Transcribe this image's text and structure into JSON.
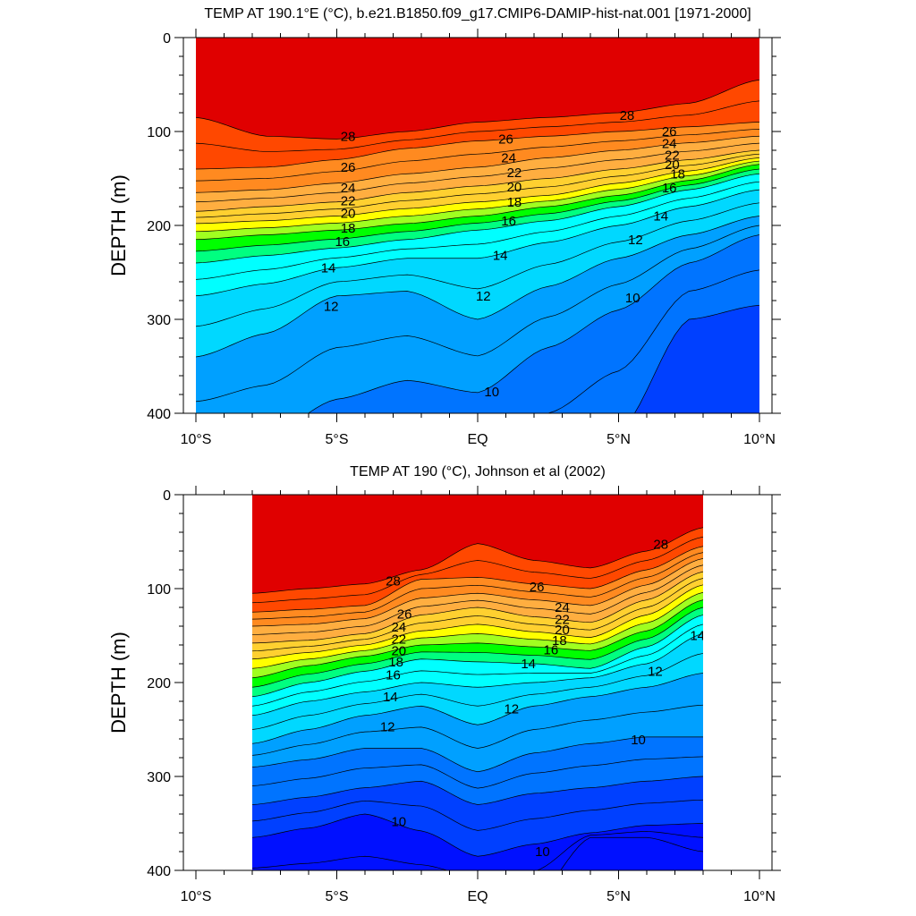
{
  "chart_data": [
    {
      "type": "contour",
      "title": "TEMP AT 190.1°E (°C), b.e21.B1850.f09_g17.CMIP6-DAMIP-hist-nat.001 [1971-2000]",
      "xlabel": "",
      "ylabel": "DEPTH (m)",
      "xlim": [
        -10,
        10
      ],
      "ylim": [
        0,
        400
      ],
      "y_inverted": true,
      "x_ticks": [
        {
          "value": -10,
          "label": "10°S"
        },
        {
          "value": -5,
          "label": "5°S"
        },
        {
          "value": 0,
          "label": "EQ"
        },
        {
          "value": 5,
          "label": "5°N"
        },
        {
          "value": 10,
          "label": "10°N"
        }
      ],
      "y_ticks": [
        0,
        100,
        200,
        300,
        400
      ],
      "data_x_range": [
        -10,
        10
      ],
      "contour_interval": 1,
      "isotherm_depths": {
        "x": [
          -10,
          -7.5,
          -5,
          -2.5,
          0,
          2.5,
          5,
          7.5,
          10
        ],
        "levels": [
          {
            "value": 28,
            "depths": [
              85,
              105,
              108,
              100,
              90,
              85,
              80,
              70,
              45
            ]
          },
          {
            "value": 26,
            "depths": [
              140,
              138,
              130,
              118,
              110,
              105,
              100,
              95,
              90
            ]
          },
          {
            "value": 24,
            "depths": [
              165,
              162,
              155,
              145,
              138,
              128,
              120,
              112,
              105
            ]
          },
          {
            "value": 22,
            "depths": [
              185,
              180,
              175,
              165,
              158,
              150,
              140,
              130,
              120
            ]
          },
          {
            "value": 20,
            "depths": [
              198,
              195,
              190,
              182,
              175,
              168,
              155,
              142,
              128
            ]
          },
          {
            "value": 18,
            "depths": [
              215,
              210,
              205,
              198,
              190,
              180,
              168,
              152,
              135
            ]
          },
          {
            "value": 16,
            "depths": [
              240,
              232,
              224,
              215,
              205,
              195,
              180,
              162,
              145
            ]
          },
          {
            "value": 14,
            "depths": [
              275,
              262,
              245,
              235,
              235,
              218,
              200,
              180,
              162
            ]
          },
          {
            "value": 12,
            "depths": [
              340,
              315,
              275,
              270,
              300,
              265,
              235,
              210,
              190
            ]
          },
          {
            "value": 10,
            "depths": [
              435,
              425,
              385,
              365,
              378,
              330,
              290,
              240,
              210
            ]
          },
          {
            "value": 8,
            "depths": [
              520,
              510,
              505,
              490,
              480,
              470,
              420,
              300,
              285
            ]
          }
        ]
      },
      "contour_labels": [
        {
          "x": -4.6,
          "y": 105,
          "text": "28"
        },
        {
          "x": 5.3,
          "y": 83,
          "text": "28"
        },
        {
          "x": -4.6,
          "y": 138,
          "text": "26"
        },
        {
          "x": 1.0,
          "y": 108,
          "text": "26"
        },
        {
          "x": 6.8,
          "y": 100,
          "text": "26"
        },
        {
          "x": -4.6,
          "y": 160,
          "text": "24"
        },
        {
          "x": 1.1,
          "y": 128,
          "text": "24"
        },
        {
          "x": 6.8,
          "y": 113,
          "text": "24"
        },
        {
          "x": -4.6,
          "y": 174,
          "text": "22"
        },
        {
          "x": 1.3,
          "y": 144,
          "text": "22"
        },
        {
          "x": 6.9,
          "y": 125,
          "text": "22"
        },
        {
          "x": -4.6,
          "y": 187,
          "text": "20"
        },
        {
          "x": 1.3,
          "y": 159,
          "text": "20"
        },
        {
          "x": 6.9,
          "y": 135,
          "text": "20"
        },
        {
          "x": -4.6,
          "y": 203,
          "text": "18"
        },
        {
          "x": 1.3,
          "y": 175,
          "text": "18"
        },
        {
          "x": 7.1,
          "y": 145,
          "text": "18"
        },
        {
          "x": -4.8,
          "y": 217,
          "text": "16"
        },
        {
          "x": 1.1,
          "y": 195,
          "text": "16"
        },
        {
          "x": 6.8,
          "y": 160,
          "text": "16"
        },
        {
          "x": -5.3,
          "y": 245,
          "text": "14"
        },
        {
          "x": 0.8,
          "y": 232,
          "text": "14"
        },
        {
          "x": 6.5,
          "y": 190,
          "text": "14"
        },
        {
          "x": -5.2,
          "y": 286,
          "text": "12"
        },
        {
          "x": 0.2,
          "y": 275,
          "text": "12"
        },
        {
          "x": 5.6,
          "y": 215,
          "text": "12"
        },
        {
          "x": 0.5,
          "y": 377,
          "text": "10"
        },
        {
          "x": 5.5,
          "y": 277,
          "text": "10"
        }
      ]
    },
    {
      "type": "contour",
      "title": "TEMP AT 190 (°C), Johnson et al (2002)",
      "xlabel": "",
      "ylabel": "DEPTH (m)",
      "xlim": [
        -10,
        10
      ],
      "ylim": [
        0,
        400
      ],
      "y_inverted": true,
      "x_ticks": [
        {
          "value": -10,
          "label": "10°S"
        },
        {
          "value": -5,
          "label": "5°S"
        },
        {
          "value": 0,
          "label": "EQ"
        },
        {
          "value": 5,
          "label": "5°N"
        },
        {
          "value": 10,
          "label": "10°N"
        }
      ],
      "y_ticks": [
        0,
        100,
        200,
        300,
        400
      ],
      "data_x_range": [
        -8,
        8
      ],
      "contour_interval": 1,
      "isotherm_depths": {
        "x": [
          -8,
          -6,
          -4,
          -2,
          0,
          2,
          4,
          6,
          8
        ],
        "levels": [
          {
            "value": 28,
            "depths": [
              105,
              100,
              95,
              80,
              52,
              70,
              78,
              60,
              35
            ]
          },
          {
            "value": 26,
            "depths": [
              125,
              122,
              118,
              90,
              88,
              95,
              100,
              80,
              55
            ]
          },
          {
            "value": 24,
            "depths": [
              140,
              138,
              132,
              110,
              105,
              112,
              118,
              96,
              68
            ]
          },
          {
            "value": 22,
            "depths": [
              158,
              155,
              148,
              128,
              120,
              130,
              136,
              112,
              82
            ]
          },
          {
            "value": 20,
            "depths": [
              175,
              168,
              160,
              145,
              138,
              146,
              152,
              128,
              96
            ]
          },
          {
            "value": 18,
            "depths": [
              195,
              182,
              172,
              160,
              158,
              162,
              166,
              145,
              112
            ]
          },
          {
            "value": 16,
            "depths": [
              215,
              200,
              188,
              175,
              178,
              180,
              185,
              162,
              128
            ]
          },
          {
            "value": 14,
            "depths": [
              235,
              220,
              210,
              200,
              205,
              200,
              195,
              180,
              148
            ]
          },
          {
            "value": 12,
            "depths": [
              265,
              250,
              235,
              225,
              245,
              225,
              215,
              205,
              190
            ]
          },
          {
            "value": 10,
            "depths": [
              290,
              282,
              270,
              270,
              295,
              275,
              265,
              258,
              258
            ]
          },
          {
            "value": 8,
            "depths": [
              330,
              322,
              312,
              305,
              330,
              318,
              312,
              305,
              300
            ]
          },
          {
            "value": 6,
            "depths": [
              365,
              355,
              340,
              358,
              385,
              372,
              360,
              352,
              350
            ]
          },
          {
            "value": 4,
            "depths": [
              430,
              430,
              430,
              430,
              430,
              430,
              365,
              365,
              380
            ]
          }
        ]
      },
      "contour_labels": [
        {
          "x": -3.0,
          "y": 92,
          "text": "28"
        },
        {
          "x": 6.5,
          "y": 53,
          "text": "28"
        },
        {
          "x": 2.1,
          "y": 98,
          "text": "26"
        },
        {
          "x": -2.6,
          "y": 127,
          "text": "26"
        },
        {
          "x": -2.8,
          "y": 141,
          "text": "24"
        },
        {
          "x": 3.0,
          "y": 120,
          "text": "24"
        },
        {
          "x": -2.8,
          "y": 154,
          "text": "22"
        },
        {
          "x": 3.0,
          "y": 133,
          "text": "22"
        },
        {
          "x": -2.8,
          "y": 166,
          "text": "20"
        },
        {
          "x": 3.0,
          "y": 144,
          "text": "20"
        },
        {
          "x": -2.9,
          "y": 178,
          "text": "18"
        },
        {
          "x": 2.9,
          "y": 155,
          "text": "18"
        },
        {
          "x": -3.0,
          "y": 192,
          "text": "16"
        },
        {
          "x": 2.6,
          "y": 165,
          "text": "16"
        },
        {
          "x": -3.1,
          "y": 215,
          "text": "14"
        },
        {
          "x": 1.8,
          "y": 180,
          "text": "14"
        },
        {
          "x": 7.8,
          "y": 150,
          "text": "14"
        },
        {
          "x": -3.2,
          "y": 247,
          "text": "12"
        },
        {
          "x": 1.2,
          "y": 228,
          "text": "12"
        },
        {
          "x": 6.3,
          "y": 188,
          "text": "12"
        },
        {
          "x": 5.7,
          "y": 261,
          "text": "10"
        },
        {
          "x": -2.8,
          "y": 348,
          "text": "10"
        },
        {
          "x": 2.3,
          "y": 380,
          "text": "10"
        }
      ]
    }
  ],
  "colormap": {
    "bands": [
      {
        "max": 6,
        "color": "#0010ff"
      },
      {
        "max": 8,
        "color": "#0040ff"
      },
      {
        "max": 10,
        "color": "#0074ff"
      },
      {
        "max": 12,
        "color": "#00a0ff"
      },
      {
        "max": 14,
        "color": "#00d8ff"
      },
      {
        "max": 16,
        "color": "#00ffff"
      },
      {
        "max": 17,
        "color": "#00ff80"
      },
      {
        "max": 18,
        "color": "#00ff00"
      },
      {
        "max": 19,
        "color": "#a0ff20"
      },
      {
        "max": 20,
        "color": "#ffff00"
      },
      {
        "max": 22,
        "color": "#ffd030"
      },
      {
        "max": 24,
        "color": "#ffae40"
      },
      {
        "max": 26,
        "color": "#ff8a20"
      },
      {
        "max": 28,
        "color": "#ff4800"
      },
      {
        "max": 29,
        "color": "#ff0000"
      },
      {
        "max": 99,
        "color": "#e00000"
      }
    ]
  }
}
